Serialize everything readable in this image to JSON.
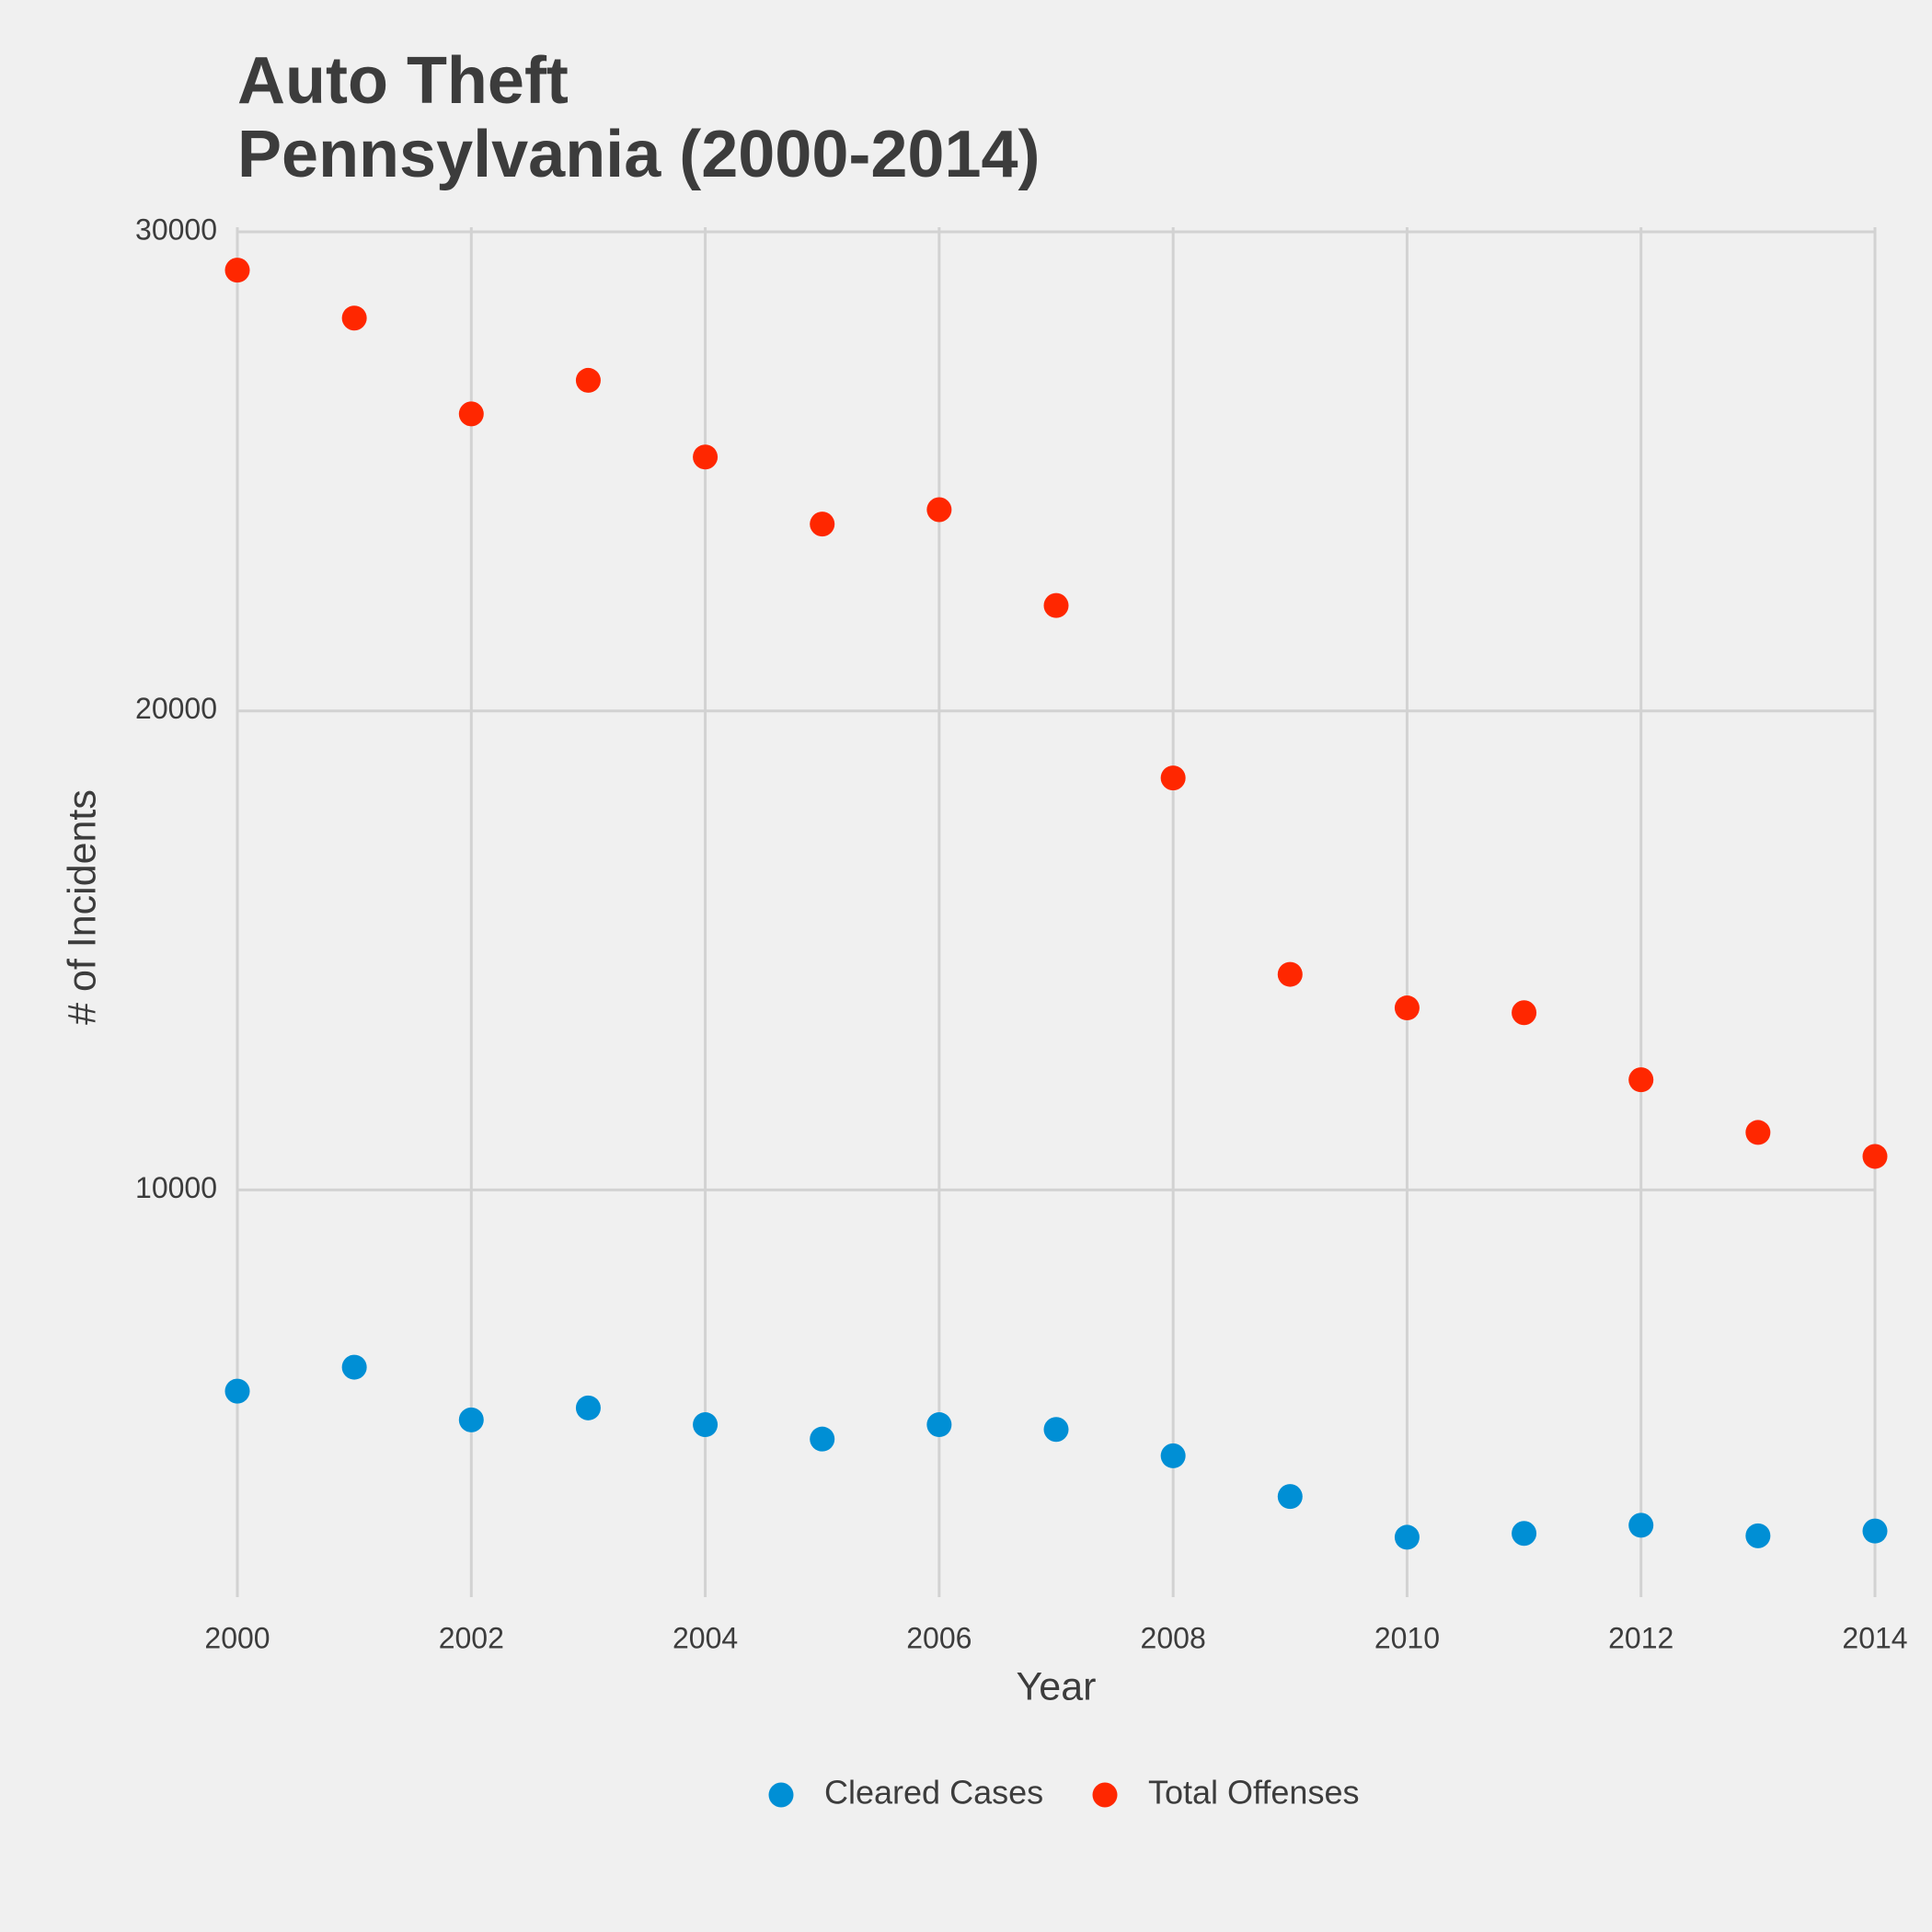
{
  "chart_data": {
    "type": "scatter",
    "title": "Auto Theft",
    "subtitle": "Pennsylvania (2000-2014)",
    "x_label": "Year",
    "y_label": "# of Incidents",
    "x": [
      2000,
      2001,
      2002,
      2003,
      2004,
      2005,
      2006,
      2007,
      2008,
      2009,
      2010,
      2011,
      2012,
      2013,
      2014
    ],
    "series": [
      {
        "name": "Cleared Cases",
        "color": "#008fd5",
        "values": [
          5800,
          6300,
          5200,
          5450,
          5100,
          4800,
          5100,
          5000,
          4450,
          3600,
          2750,
          2830,
          3000,
          2780,
          2880
        ]
      },
      {
        "name": "Total Offenses",
        "color": "#ff2700",
        "values": [
          29200,
          28200,
          26200,
          26900,
          25300,
          23900,
          24200,
          22200,
          18600,
          14500,
          13800,
          13700,
          12300,
          11200,
          10700
        ]
      }
    ],
    "xlim": [
      2000,
      2014
    ],
    "xticks": [
      2000,
      2002,
      2004,
      2006,
      2008,
      2010,
      2012,
      2014
    ],
    "ylim": [
      1500,
      30000
    ],
    "yticks": [
      10000,
      20000,
      30000
    ],
    "grid": true,
    "legend": "bottom"
  }
}
